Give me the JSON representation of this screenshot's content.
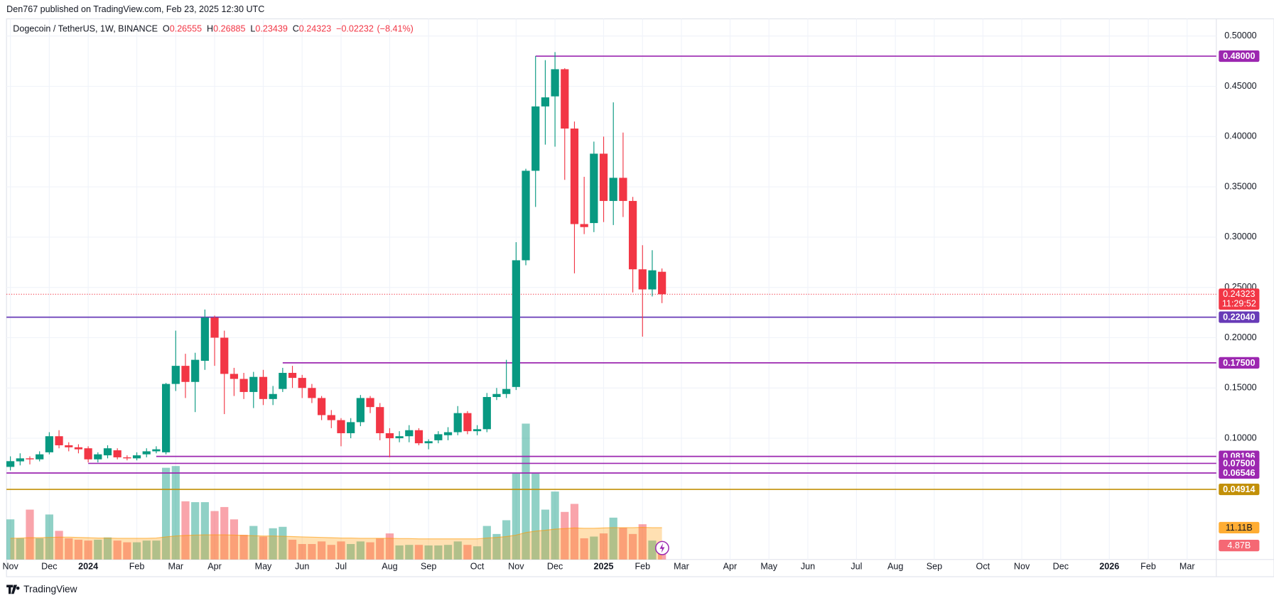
{
  "header": {
    "published": "Den767 published on TradingView.com, Feb 23, 2025 12:30 UTC",
    "logo": "TradingView"
  },
  "chart_data": {
    "type": "candlestick",
    "symbol": "Dogecoin / TetherUS, 1W, BINANCE",
    "ohlc_legend": {
      "o_label": "O",
      "o": 0.26555,
      "h_label": "H",
      "h": 0.26885,
      "l_label": "L",
      "l": 0.23439,
      "c_label": "C",
      "c": 0.24323,
      "change": {
        "value": -0.02232,
        "label": "−0.02232"
      },
      "change_pct": {
        "value": -8.41,
        "label": "(−8.41%)"
      }
    },
    "up_color": "#089981",
    "down_color": "#f23645",
    "open": [
      0.0715,
      0.077,
      0.08,
      0.079,
      0.086,
      0.102,
      0.093,
      0.091,
      0.09,
      0.079,
      0.083,
      0.088,
      0.081,
      0.08,
      0.084,
      0.087,
      0.086,
      0.154,
      0.172,
      0.156,
      0.177,
      0.22,
      0.2,
      0.164,
      0.159,
      0.146,
      0.161,
      0.139,
      0.149,
      0.165,
      0.16,
      0.15,
      0.14,
      0.123,
      0.118,
      0.105,
      0.116,
      0.14,
      0.131,
      0.105,
      0.1,
      0.102,
      0.108,
      0.095,
      0.098,
      0.103,
      0.106,
      0.125,
      0.107,
      0.109,
      0.141,
      0.144,
      0.151,
      0.277,
      0.366,
      0.43,
      0.44,
      0.467,
      0.408,
      0.313,
      0.314,
      0.383,
      0.336,
      0.359,
      0.336,
      0.268,
      0.248,
      0.26555
    ],
    "high": [
      0.082,
      0.085,
      0.082,
      0.087,
      0.106,
      0.108,
      0.096,
      0.094,
      0.092,
      0.086,
      0.093,
      0.09,
      0.083,
      0.086,
      0.09,
      0.092,
      0.155,
      0.207,
      0.184,
      0.185,
      0.228,
      0.222,
      0.207,
      0.17,
      0.165,
      0.166,
      0.168,
      0.152,
      0.17,
      0.172,
      0.163,
      0.154,
      0.142,
      0.128,
      0.12,
      0.12,
      0.143,
      0.142,
      0.135,
      0.11,
      0.107,
      0.113,
      0.11,
      0.099,
      0.107,
      0.111,
      0.132,
      0.127,
      0.113,
      0.145,
      0.15,
      0.178,
      0.295,
      0.368,
      0.48,
      0.476,
      0.484,
      0.468,
      0.415,
      0.36,
      0.395,
      0.4,
      0.434,
      0.404,
      0.34,
      0.292,
      0.287,
      0.26885
    ],
    "low": [
      0.068,
      0.073,
      0.074,
      0.077,
      0.084,
      0.09,
      0.087,
      0.085,
      0.076,
      0.076,
      0.08,
      0.079,
      0.078,
      0.078,
      0.081,
      0.085,
      0.084,
      0.147,
      0.14,
      0.126,
      0.168,
      0.172,
      0.124,
      0.142,
      0.139,
      0.13,
      0.133,
      0.133,
      0.146,
      0.15,
      0.14,
      0.135,
      0.118,
      0.11,
      0.092,
      0.1,
      0.112,
      0.125,
      0.098,
      0.081,
      0.096,
      0.096,
      0.093,
      0.089,
      0.095,
      0.098,
      0.103,
      0.104,
      0.103,
      0.106,
      0.138,
      0.14,
      0.148,
      0.272,
      0.33,
      0.392,
      0.39,
      0.357,
      0.264,
      0.303,
      0.305,
      0.315,
      0.312,
      0.32,
      0.245,
      0.201,
      0.241,
      0.23439
    ],
    "close": [
      0.0772,
      0.08,
      0.079,
      0.084,
      0.102,
      0.093,
      0.091,
      0.089,
      0.079,
      0.084,
      0.09,
      0.081,
      0.08,
      0.083,
      0.087,
      0.089,
      0.154,
      0.172,
      0.156,
      0.178,
      0.22,
      0.2,
      0.164,
      0.159,
      0.146,
      0.161,
      0.139,
      0.144,
      0.165,
      0.16,
      0.15,
      0.14,
      0.123,
      0.118,
      0.105,
      0.116,
      0.14,
      0.131,
      0.105,
      0.1,
      0.102,
      0.108,
      0.095,
      0.097,
      0.104,
      0.106,
      0.125,
      0.107,
      0.109,
      0.141,
      0.144,
      0.149,
      0.277,
      0.366,
      0.43,
      0.439,
      0.467,
      0.408,
      0.313,
      0.31,
      0.383,
      0.336,
      0.359,
      0.336,
      0.268,
      0.248,
      0.267,
      0.24323
    ],
    "close_label": "0.24323",
    "countdown": "11:29:52",
    "volume": {
      "values": [
        14,
        7.4,
        17.4,
        7.4,
        15.7,
        10,
        7.4,
        6.9,
        6.6,
        6.9,
        7.7,
        6.6,
        6,
        6,
        6.6,
        6.6,
        32,
        32.6,
        20.3,
        20,
        20,
        16.9,
        18.3,
        14,
        8.6,
        11.7,
        8,
        10.9,
        11.4,
        6.9,
        5.4,
        5.4,
        6.3,
        5.1,
        6.3,
        5.4,
        6.3,
        6,
        7.4,
        9.1,
        4.9,
        5.1,
        5.1,
        4.9,
        4.9,
        5.1,
        6.3,
        5.1,
        4.6,
        11.7,
        8.9,
        13.7,
        30,
        47.4,
        30,
        17.4,
        23.7,
        16.6,
        19.4,
        7.4,
        8,
        9.1,
        14.6,
        11.1,
        8.9,
        12.3,
        6.6,
        4.87
      ],
      "last_label": "4.87B"
    },
    "volume_ma": {
      "values": [
        7.4,
        7.5,
        7.6,
        7.6,
        7.7,
        7.8,
        7.8,
        7.7,
        7.6,
        7.5,
        7.5,
        7.4,
        7.4,
        7.4,
        7.4,
        7.5,
        7.9,
        8.2,
        8.4,
        8.5,
        8.6,
        8.6,
        8.6,
        8.5,
        8.4,
        8.3,
        8.2,
        8.2,
        8.1,
        8.0,
        7.9,
        7.8,
        7.7,
        7.6,
        7.5,
        7.5,
        7.4,
        7.4,
        7.4,
        7.4,
        7.3,
        7.3,
        7.2,
        7.2,
        7.2,
        7.2,
        7.2,
        7.2,
        7.2,
        7.5,
        7.7,
        8.0,
        8.5,
        9.4,
        9.9,
        10.2,
        10.6,
        10.8,
        11.0,
        10.9,
        10.9,
        11.0,
        11.1,
        11.1,
        11.1,
        11.2,
        11.1,
        11.11
      ],
      "last_label": "11.11B",
      "color": "#ff9800"
    },
    "vlim": [
      0,
      188.6
    ],
    "levels": [
      {
        "value": 0.48,
        "label": "0.48000",
        "color": "#9c27b0",
        "start": 54
      },
      {
        "value": 0.2204,
        "label": "0.22040",
        "color": "#673ab7"
      },
      {
        "value": 0.175,
        "label": "0.17500",
        "color": "#9c27b0",
        "start": 28
      },
      {
        "value": 0.08196,
        "label": "0.08196",
        "color": "#9c27b0",
        "start": 15
      },
      {
        "value": 0.075,
        "label": "0.07500",
        "color": "#9c27b0",
        "start": 8
      },
      {
        "value": 0.06546,
        "label": "0.06546",
        "color": "#9c27b0"
      },
      {
        "value": 0.04914,
        "label": "0.04914",
        "color": "#c29008"
      }
    ],
    "ylim": [
      -0.0206,
      0.5171
    ],
    "yticks": [
      {
        "value": 0.1,
        "label": "0.10000"
      },
      {
        "value": 0.15,
        "label": "0.15000"
      },
      {
        "value": 0.2,
        "label": "0.20000"
      },
      {
        "value": 0.25,
        "label": "0.25000"
      },
      {
        "value": 0.3,
        "label": "0.30000"
      },
      {
        "value": 0.35,
        "label": "0.35000"
      },
      {
        "value": 0.4,
        "label": "0.40000"
      },
      {
        "value": 0.45,
        "label": "0.45000"
      },
      {
        "value": 0.5,
        "label": "0.50000"
      }
    ],
    "xlim": [
      -0.4,
      124
    ],
    "xticks": [
      {
        "value": 0,
        "label": "Nov"
      },
      {
        "value": 4,
        "label": "Dec"
      },
      {
        "value": 8,
        "label": "2024"
      },
      {
        "value": 13,
        "label": "Feb"
      },
      {
        "value": 17,
        "label": "Mar"
      },
      {
        "value": 21,
        "label": "Apr"
      },
      {
        "value": 26,
        "label": "May"
      },
      {
        "value": 30,
        "label": "Jun"
      },
      {
        "value": 34,
        "label": "Jul"
      },
      {
        "value": 39,
        "label": "Aug"
      },
      {
        "value": 43,
        "label": "Sep"
      },
      {
        "value": 48,
        "label": "Oct"
      },
      {
        "value": 52,
        "label": "Nov"
      },
      {
        "value": 56,
        "label": "Dec"
      },
      {
        "value": 61,
        "label": "2025"
      },
      {
        "value": 65,
        "label": "Feb"
      },
      {
        "value": 69,
        "label": "Mar"
      },
      {
        "value": 74,
        "label": "Apr"
      },
      {
        "value": 78,
        "label": "May"
      },
      {
        "value": 82,
        "label": "Jun"
      },
      {
        "value": 87,
        "label": "Jul"
      },
      {
        "value": 91,
        "label": "Aug"
      },
      {
        "value": 95,
        "label": "Sep"
      },
      {
        "value": 100,
        "label": "Oct"
      },
      {
        "value": 104,
        "label": "Nov"
      },
      {
        "value": 108,
        "label": "Dec"
      },
      {
        "value": 113,
        "label": "2026"
      },
      {
        "value": 117,
        "label": "Feb"
      },
      {
        "value": 121,
        "label": "Mar"
      }
    ],
    "grid": true
  }
}
